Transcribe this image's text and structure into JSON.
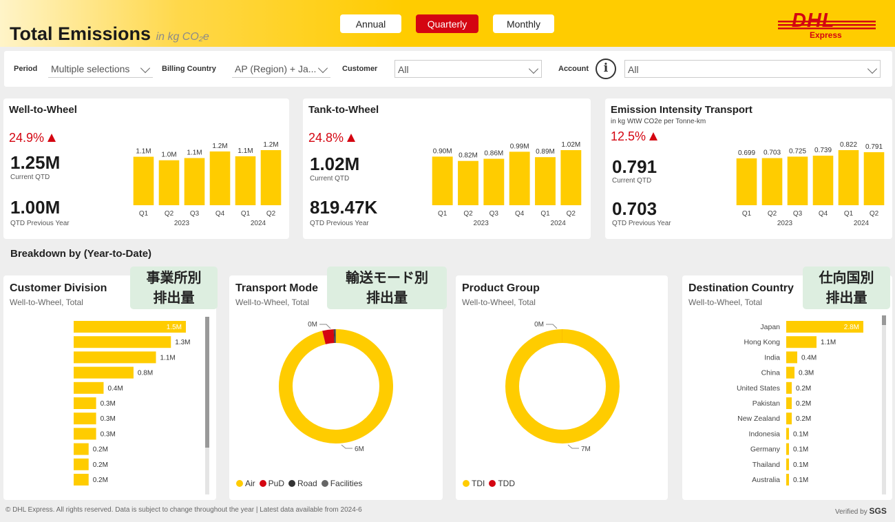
{
  "header": {
    "title": "Total Emissions",
    "title_unit": "in kg CO₂e",
    "period_buttons": [
      {
        "label": "Annual",
        "active": false
      },
      {
        "label": "Quarterly",
        "active": true
      },
      {
        "label": "Monthly",
        "active": false
      }
    ],
    "logo_text": "DHL",
    "logo_sub": "Express"
  },
  "filters": {
    "period": {
      "label": "Period",
      "value": "Multiple selections"
    },
    "billing_country": {
      "label": "Billing Country",
      "value": "AP (Region) + Ja..."
    },
    "customer": {
      "label": "Customer",
      "value": "All"
    },
    "account": {
      "label": "Account",
      "value": "All"
    },
    "info_glyph": "i"
  },
  "kpis": [
    {
      "title": "Well-to-Wheel",
      "subtitle": "",
      "change_pct": "24.9%",
      "current_value": "1.25M",
      "current_label": "Current QTD",
      "previous_value": "1.00M",
      "previous_label": "QTD Previous Year",
      "chart_data": {
        "type": "bar",
        "categories": [
          "Q1",
          "Q2",
          "Q3",
          "Q4",
          "Q1",
          "Q2"
        ],
        "year_groups": [
          {
            "label": "2023",
            "span": 4
          },
          {
            "label": "2024",
            "span": 2
          }
        ],
        "values": [
          1.1,
          1.02,
          1.07,
          1.22,
          1.11,
          1.25
        ],
        "value_labels": [
          "1.1M",
          "1.0M",
          "1.1M",
          "1.2M",
          "1.1M",
          "1.2M"
        ],
        "ylim": [
          0,
          1.25
        ]
      }
    },
    {
      "title": "Tank-to-Wheel",
      "subtitle": "",
      "change_pct": "24.8%",
      "current_value": "1.02M",
      "current_label": "Current QTD",
      "previous_value": "819.47K",
      "previous_label": "QTD Previous Year",
      "chart_data": {
        "type": "bar",
        "categories": [
          "Q1",
          "Q2",
          "Q3",
          "Q4",
          "Q1",
          "Q2"
        ],
        "year_groups": [
          {
            "label": "2023",
            "span": 4
          },
          {
            "label": "2024",
            "span": 2
          }
        ],
        "values": [
          0.9,
          0.82,
          0.86,
          0.99,
          0.89,
          1.02
        ],
        "value_labels": [
          "0.90M",
          "0.82M",
          "0.86M",
          "0.99M",
          "0.89M",
          "1.02M"
        ],
        "ylim": [
          0,
          1.02
        ]
      }
    },
    {
      "title": "Emission Intensity Transport",
      "subtitle": "in kg WtW CO2e per Tonne-km",
      "change_pct": "12.5%",
      "current_value": "0.791",
      "current_label": "Current QTD",
      "previous_value": "0.703",
      "previous_label": "QTD Previous Year",
      "chart_data": {
        "type": "bar",
        "categories": [
          "Q1",
          "Q2",
          "Q3",
          "Q4",
          "Q1",
          "Q2"
        ],
        "year_groups": [
          {
            "label": "2023",
            "span": 4
          },
          {
            "label": "2024",
            "span": 2
          }
        ],
        "values": [
          0.699,
          0.703,
          0.725,
          0.739,
          0.822,
          0.791
        ],
        "value_labels": [
          "0.699",
          "0.703",
          "0.725",
          "0.739",
          "0.822",
          "0.791"
        ],
        "ylim": [
          0,
          0.822
        ]
      }
    }
  ],
  "breakdown": {
    "section_title": "Breakdown by (Year-to-Date)",
    "customer_division": {
      "title": "Customer Division",
      "subtitle": "Well-to-Wheel, Total",
      "jp_label_line1": "事業所別",
      "jp_label_line2": "排出量",
      "chart_data": {
        "type": "bar",
        "orientation": "horizontal",
        "categories": [
          "",
          "",
          "",
          "",
          "",
          "",
          "",
          "",
          "",
          "",
          ""
        ],
        "values": [
          1.5,
          1.3,
          1.1,
          0.8,
          0.4,
          0.3,
          0.3,
          0.3,
          0.2,
          0.2,
          0.2
        ],
        "value_labels": [
          "1.5M",
          "1.3M",
          "1.1M",
          "0.8M",
          "0.4M",
          "0.3M",
          "0.3M",
          "0.3M",
          "0.2M",
          "0.2M",
          "0.2M"
        ],
        "xlim": [
          0,
          1.5
        ]
      }
    },
    "transport_mode": {
      "title": "Transport Mode",
      "subtitle": "Well-to-Wheel, Total",
      "jp_label_line1": "輸送モード別",
      "jp_label_line2": "排出量",
      "chart_data": {
        "type": "pie",
        "donut": true,
        "labels": [
          "Air",
          "PuD",
          "Road",
          "Facilities"
        ],
        "values": [
          6.0,
          0.2,
          0.02,
          0.02
        ],
        "colors": [
          "#ffcc00",
          "#d40511",
          "#333333",
          "#666666"
        ],
        "annotations": [
          "6M",
          "0M"
        ]
      }
    },
    "product_group": {
      "title": "Product Group",
      "subtitle": "Well-to-Wheel, Total",
      "chart_data": {
        "type": "pie",
        "donut": true,
        "labels": [
          "TDI",
          "TDD"
        ],
        "values": [
          7.0,
          0.001
        ],
        "colors": [
          "#ffcc00",
          "#d40511"
        ],
        "annotations": [
          "7M",
          "0M"
        ]
      }
    },
    "destination_country": {
      "title": "Destination Country",
      "subtitle": "Well-to-Wheel, Total",
      "jp_label_line1": "仕向国別",
      "jp_label_line2": "排出量",
      "chart_data": {
        "type": "bar",
        "orientation": "horizontal",
        "categories": [
          "Japan",
          "Hong Kong",
          "India",
          "China",
          "United States",
          "Pakistan",
          "New Zealand",
          "Indonesia",
          "Germany",
          "Thailand",
          "Australia"
        ],
        "values": [
          2.8,
          1.1,
          0.4,
          0.3,
          0.2,
          0.2,
          0.2,
          0.1,
          0.1,
          0.1,
          0.1
        ],
        "value_labels": [
          "2.8M",
          "1.1M",
          "0.4M",
          "0.3M",
          "0.2M",
          "0.2M",
          "0.2M",
          "0.1M",
          "0.1M",
          "0.1M",
          "0.1M"
        ],
        "xlim": [
          0,
          2.8
        ]
      }
    }
  },
  "footer": {
    "copyright": "© DHL Express. All rights reserved. Data is subject to change throughout the year | Latest data available from 2024-6",
    "verified_prefix": "Verified by",
    "verified_brand": "SGS"
  },
  "colors": {
    "brand_yellow": "#ffcc00",
    "brand_red": "#d40511"
  }
}
